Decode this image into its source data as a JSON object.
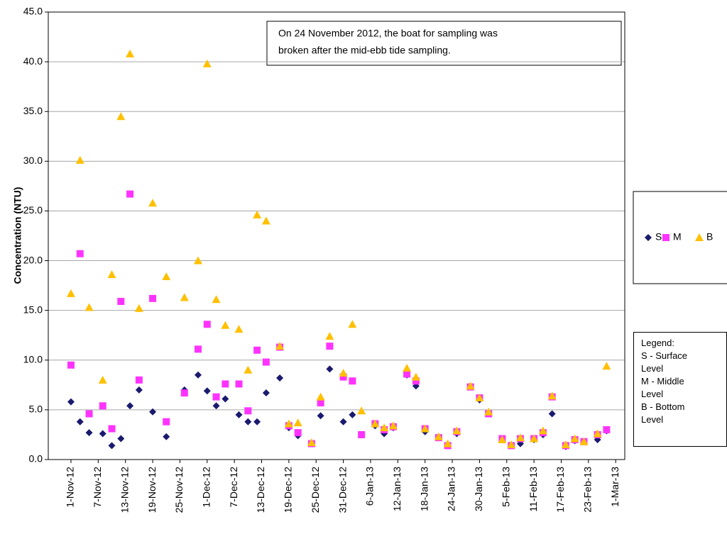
{
  "chart_data": {
    "type": "scatter",
    "y_label": "Concentration (NTU)",
    "annotation": [
      "On 24 November 2012, the boat for sampling was",
      "broken after the mid-ebb tide sampling."
    ],
    "notes": [
      "Legend:",
      "S - Surface Level",
      "M - Middle Level",
      "B - Bottom Level"
    ],
    "x": [
      "2012-11-01",
      "2012-11-03",
      "2012-11-05",
      "2012-11-08",
      "2012-11-10",
      "2012-11-12",
      "2012-11-14",
      "2012-11-16",
      "2012-11-19",
      "2012-11-22",
      "2012-11-26",
      "2012-11-29",
      "2012-12-01",
      "2012-12-03",
      "2012-12-05",
      "2012-12-08",
      "2012-12-10",
      "2012-12-12",
      "2012-12-14",
      "2012-12-17",
      "2012-12-19",
      "2012-12-21",
      "2012-12-24",
      "2012-12-26",
      "2012-12-28",
      "2012-12-31",
      "2013-01-02",
      "2013-01-04",
      "2013-01-07",
      "2013-01-09",
      "2013-01-11",
      "2013-01-14",
      "2013-01-16",
      "2013-01-18",
      "2013-01-21",
      "2013-01-23",
      "2013-01-25",
      "2013-01-28",
      "2013-01-30",
      "2013-02-01",
      "2013-02-04",
      "2013-02-06",
      "2013-02-08",
      "2013-02-11",
      "2013-02-13",
      "2013-02-15",
      "2013-02-18",
      "2013-02-20",
      "2013-02-22",
      "2013-02-25",
      "2013-02-27"
    ],
    "series": [
      {
        "name": "S",
        "color": "#1a1a6e",
        "marker": "diamond",
        "values": [
          5.8,
          3.8,
          2.7,
          2.6,
          1.4,
          2.1,
          5.4,
          7.0,
          4.8,
          2.3,
          7.0,
          8.5,
          6.9,
          5.4,
          6.1,
          4.5,
          3.8,
          3.8,
          6.7,
          8.2,
          3.2,
          2.4,
          1.6,
          4.4,
          9.1,
          3.8,
          4.5,
          2.5,
          3.4,
          2.6,
          3.2,
          8.5,
          7.4,
          2.8,
          2.2,
          1.4,
          2.6,
          7.3,
          6.0,
          4.6,
          2.0,
          1.4,
          1.6,
          2.0,
          2.5,
          4.6,
          1.3,
          1.9,
          1.8,
          2.0,
          2.9
        ]
      },
      {
        "name": "M",
        "color": "#ff33ff",
        "marker": "square",
        "values": [
          9.5,
          20.7,
          4.6,
          5.4,
          3.1,
          15.9,
          26.7,
          8.0,
          16.2,
          3.8,
          6.7,
          11.1,
          13.6,
          6.3,
          7.6,
          7.6,
          4.9,
          11.0,
          9.8,
          11.3,
          3.4,
          2.7,
          1.6,
          5.7,
          11.4,
          8.3,
          7.9,
          2.5,
          3.6,
          3.0,
          3.3,
          8.6,
          7.9,
          3.1,
          2.2,
          1.4,
          2.8,
          7.3,
          6.2,
          4.6,
          2.1,
          1.4,
          2.1,
          2.1,
          2.7,
          6.3,
          1.4,
          2.0,
          1.8,
          2.5,
          3.0
        ]
      },
      {
        "name": "B",
        "color": "#ffc000",
        "marker": "triangle",
        "values": [
          16.7,
          30.1,
          15.3,
          8.0,
          18.6,
          34.5,
          40.8,
          15.2,
          25.8,
          18.4,
          16.3,
          20.0,
          39.8,
          16.1,
          13.5,
          13.1,
          9.0,
          24.6,
          24.0,
          11.4,
          3.6,
          3.7,
          1.7,
          6.3,
          12.4,
          8.7,
          13.6,
          4.9,
          3.6,
          3.2,
          3.4,
          9.2,
          8.3,
          3.1,
          2.3,
          1.6,
          2.9,
          7.4,
          6.2,
          4.8,
          2.0,
          1.5,
          2.2,
          2.1,
          2.9,
          6.4,
          1.5,
          2.1,
          1.8,
          2.6,
          9.4
        ]
      }
    ],
    "xlim": [
      "2012-10-27",
      "2013-03-03"
    ],
    "xticks": [
      {
        "value": "2012-11-01",
        "label": "1-Nov-12"
      },
      {
        "value": "2012-11-07",
        "label": "7-Nov-12"
      },
      {
        "value": "2012-11-13",
        "label": "13-Nov-12"
      },
      {
        "value": "2012-11-19",
        "label": "19-Nov-12"
      },
      {
        "value": "2012-11-25",
        "label": "25-Nov-12"
      },
      {
        "value": "2012-12-01",
        "label": "1-Dec-12"
      },
      {
        "value": "2012-12-07",
        "label": "7-Dec-12"
      },
      {
        "value": "2012-12-13",
        "label": "13-Dec-12"
      },
      {
        "value": "2012-12-19",
        "label": "19-Dec-12"
      },
      {
        "value": "2012-12-25",
        "label": "25-Dec-12"
      },
      {
        "value": "2012-12-31",
        "label": "31-Dec-12"
      },
      {
        "value": "2013-01-06",
        "label": "6-Jan-13"
      },
      {
        "value": "2013-01-12",
        "label": "12-Jan-13"
      },
      {
        "value": "2013-01-18",
        "label": "18-Jan-13"
      },
      {
        "value": "2013-01-24",
        "label": "24-Jan-13"
      },
      {
        "value": "2013-01-30",
        "label": "30-Jan-13"
      },
      {
        "value": "2013-02-05",
        "label": "5-Feb-13"
      },
      {
        "value": "2013-02-11",
        "label": "11-Feb-13"
      },
      {
        "value": "2013-02-17",
        "label": "17-Feb-13"
      },
      {
        "value": "2013-02-23",
        "label": "23-Feb-13"
      },
      {
        "value": "2013-03-01",
        "label": "1-Mar-13"
      }
    ],
    "ylim": [
      0,
      45
    ],
    "yticks": [
      {
        "value": 0,
        "label": "0.0"
      },
      {
        "value": 5,
        "label": "5.0"
      },
      {
        "value": 10,
        "label": "10.0"
      },
      {
        "value": 15,
        "label": "15.0"
      },
      {
        "value": 20,
        "label": "20.0"
      },
      {
        "value": 25,
        "label": "25.0"
      },
      {
        "value": 30,
        "label": "30.0"
      },
      {
        "value": 35,
        "label": "35.0"
      },
      {
        "value": 40,
        "label": "40.0"
      },
      {
        "value": 45,
        "label": "45.0"
      }
    ],
    "grid": true,
    "legend": "right"
  }
}
